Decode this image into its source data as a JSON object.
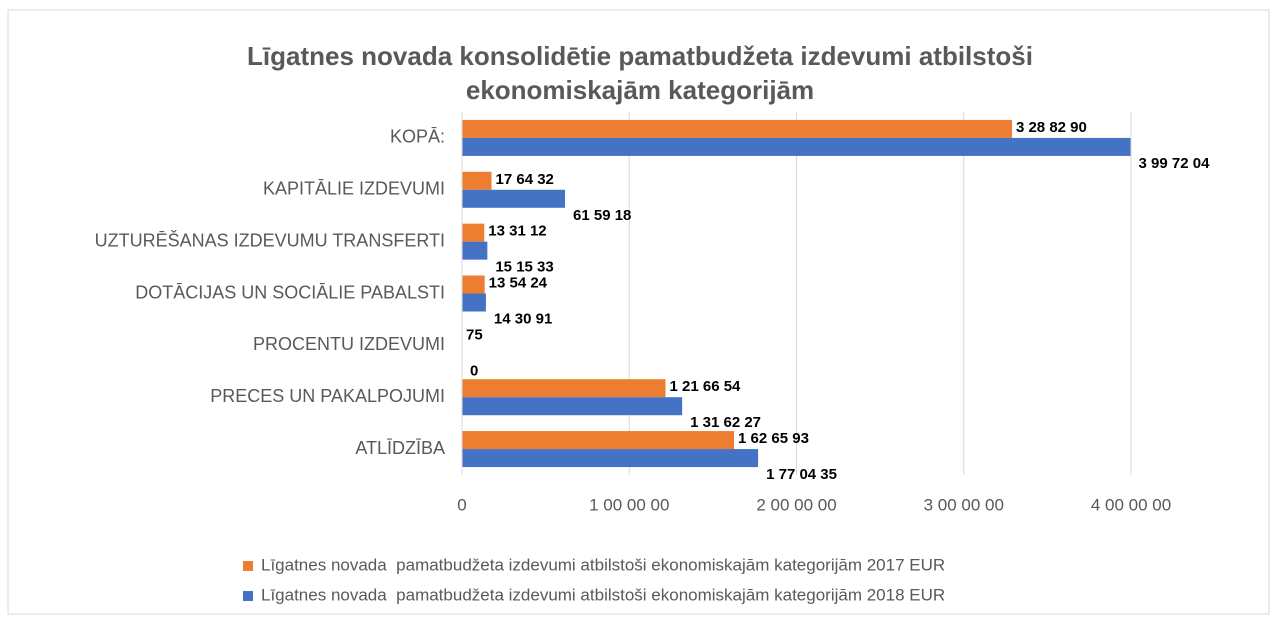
{
  "chart_data": {
    "type": "hbar",
    "title": [
      "Līgatnes novada konsolidētie pamatbudžeta izdevumi atbilstoši",
      "ekonomiskajām kategorijām"
    ],
    "categories": [
      "KOPĀ:",
      "KAPITĀLIE IZDEVUMI",
      "UZTURĒŠANAS IZDEVUMU TRANSFERTI",
      "DOTĀCIJAS UN SOCIĀLIE PABALSTI",
      "PROCENTU IZDEVUMI",
      "PRECES UN PAKALPOJUMI",
      "ATLĪDZĪBA"
    ],
    "series": [
      {
        "name": "Līgatnes novada  pamatbudžeta izdevumi atbilstoši ekonomiskajām kategorijām 2017 EUR",
        "color": "#ed7d31",
        "values": [
          3288290,
          176432,
          133112,
          135424,
          75,
          1216654,
          1626593
        ],
        "value_labels": [
          "3 28 82 90",
          "17 64 32",
          "13 31 12",
          "13 54 24",
          "75",
          "1 21 66 54",
          "1 62 65 93"
        ]
      },
      {
        "name": "Līgatnes novada  pamatbudžeta izdevumi atbilstoši ekonomiskajām kategorijām 2018 EUR",
        "color": "#4472c4",
        "values": [
          3997204,
          615918,
          151533,
          143091,
          0,
          1316227,
          1770435
        ],
        "value_labels": [
          "3 99 72 04",
          "61 59 18",
          "15 15 33",
          "14 30 91",
          "0",
          "1 31 62 27",
          "1 77 04 35"
        ]
      }
    ],
    "xlim": [
      0,
      4000000
    ],
    "xticks": [
      0,
      {
        "value": 1000000,
        "label": "1 00 00 00"
      },
      {
        "value": 2000000,
        "label": "2 00 00 00"
      },
      {
        "value": 3000000,
        "label": "3 00 00 00"
      },
      {
        "value": 4000000,
        "label": "4 00 00 00"
      }
    ],
    "grid": true,
    "legend": "bottom"
  }
}
